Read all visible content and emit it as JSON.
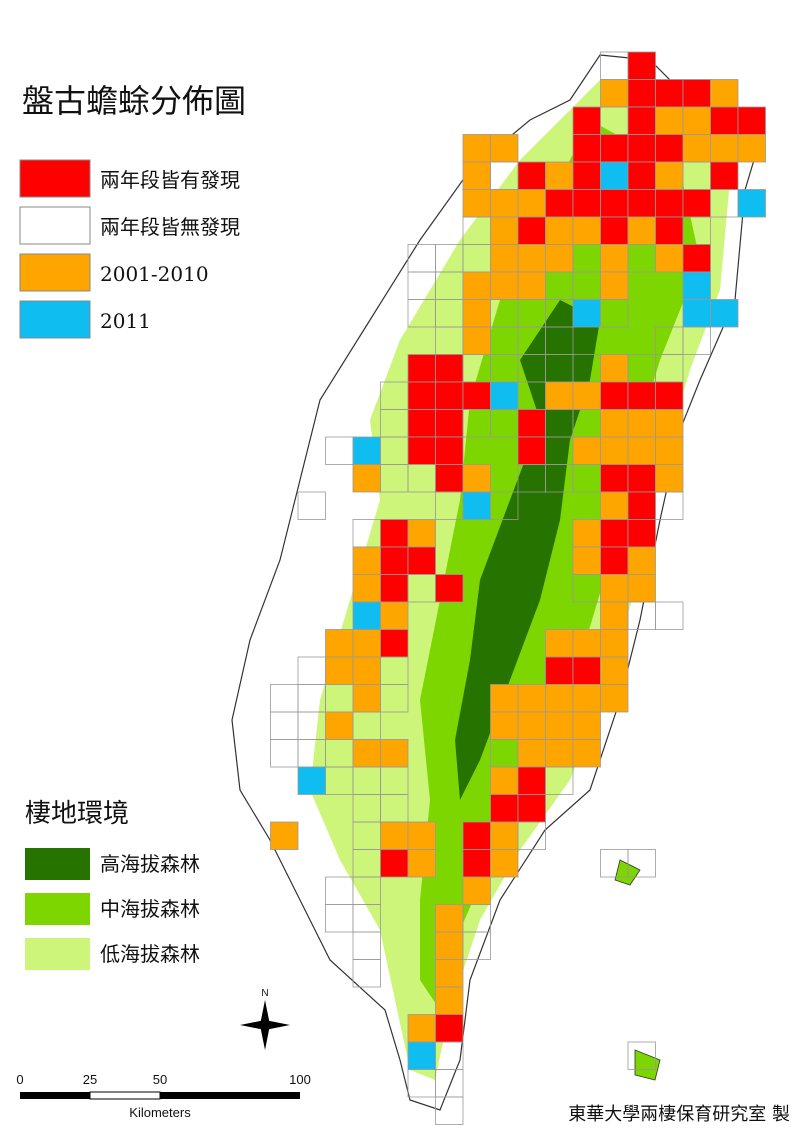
{
  "title": "盤古蟾蜍分佈圖",
  "legend": {
    "items": [
      {
        "label": "兩年段皆有發現",
        "color": "#ff0000"
      },
      {
        "label": "兩年段皆無發現",
        "color": "#ffffff"
      },
      {
        "label": "2001-2010",
        "color": "#ffa500"
      },
      {
        "label": "2011",
        "color": "#10bdf0"
      }
    ]
  },
  "habitat_legend": {
    "title": "棲地環境",
    "items": [
      {
        "label": "高海拔森林",
        "color": "#267300"
      },
      {
        "label": "中海拔森林",
        "color": "#7dd600"
      },
      {
        "label": "低海拔森林",
        "color": "#cdf57a"
      }
    ]
  },
  "north": "N",
  "scale": {
    "labels": [
      "0",
      "25",
      "50",
      "100"
    ],
    "unit": "Kilometers"
  },
  "credit": "東華大學兩棲保育研究室 製"
}
